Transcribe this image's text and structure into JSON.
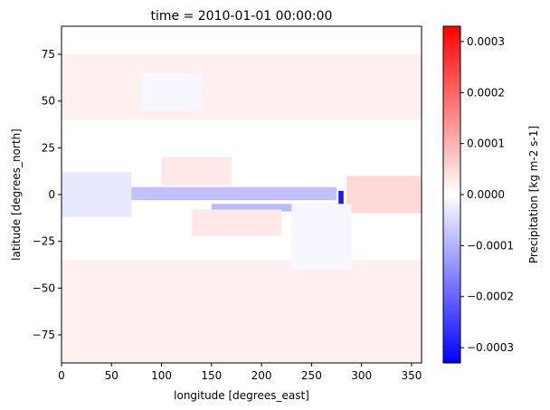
{
  "chart_data": {
    "type": "heatmap",
    "title": "time = 2010-01-01 00:00:00",
    "xlabel": "longitude [degrees_east]",
    "ylabel": "latitude [degrees_north]",
    "colorbar_label": "Precipitation [kg m-2 s-1]",
    "colormap": "bwr",
    "colormap_stops": [
      "#0000ff",
      "#ffffff",
      "#ff0000"
    ],
    "xlim": [
      0,
      360
    ],
    "ylim": [
      -90,
      90
    ],
    "vlim": [
      -0.00033,
      0.00033
    ],
    "x_ticks": [
      0,
      50,
      100,
      150,
      200,
      250,
      300,
      350
    ],
    "x_tick_labels": [
      "0",
      "50",
      "100",
      "150",
      "200",
      "250",
      "300",
      "350"
    ],
    "y_ticks": [
      -75,
      -50,
      -25,
      0,
      25,
      50,
      75
    ],
    "y_tick_labels": [
      "−75",
      "−50",
      "−25",
      "0",
      "25",
      "50",
      "75"
    ],
    "colorbar_ticks": [
      -0.0003,
      -0.0002,
      -0.0001,
      0,
      0.0001,
      0.0002,
      0.0003
    ],
    "colorbar_tick_labels": [
      "−0.0003",
      "−0.0002",
      "−0.0001",
      "0.0000",
      "0.0001",
      "0.0002",
      "0.0003"
    ],
    "grid": false,
    "features": [
      {
        "lon": [
          20,
          275
        ],
        "lat": [
          -3,
          4
        ],
        "value": -8e-05
      },
      {
        "lon": [
          150,
          275
        ],
        "lat": [
          -9,
          -5
        ],
        "value": -9e-05
      },
      {
        "lon": [
          277,
          282
        ],
        "lat": [
          -5,
          2
        ],
        "value": -0.0003
      },
      {
        "lon": [
          285,
          360
        ],
        "lat": [
          -10,
          10
        ],
        "value": 5e-05
      },
      {
        "lon": [
          0,
          70
        ],
        "lat": [
          -12,
          12
        ],
        "value": -3e-05
      },
      {
        "lon": [
          100,
          170
        ],
        "lat": [
          5,
          20
        ],
        "value": 3e-05
      },
      {
        "lon": [
          130,
          220
        ],
        "lat": [
          -22,
          -8
        ],
        "value": 3e-05
      },
      {
        "lon": [
          0,
          360
        ],
        "lat": [
          -90,
          -35
        ],
        "value": 2e-05
      },
      {
        "lon": [
          0,
          360
        ],
        "lat": [
          40,
          75
        ],
        "value": 2e-05
      },
      {
        "lon": [
          80,
          140
        ],
        "lat": [
          45,
          65
        ],
        "value": -1e-05
      },
      {
        "lon": [
          230,
          290
        ],
        "lat": [
          -40,
          -5
        ],
        "value": -1e-05
      }
    ]
  }
}
